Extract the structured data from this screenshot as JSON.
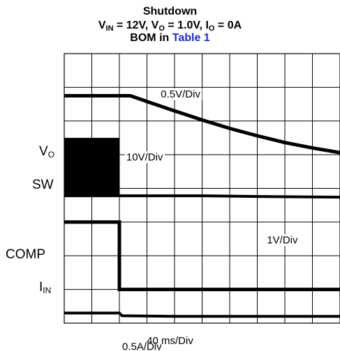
{
  "title": {
    "line1": "Shutdown",
    "line2": {
      "vin": "V",
      "vin_sub": "IN",
      "vin_value": " = 12V, ",
      "vo": "V",
      "vo_sub": "O",
      "vo_value": " = 1.0V, ",
      "io": "I",
      "io_sub": "O",
      "io_value": " = 0A"
    },
    "line3": {
      "text": "BOM in ",
      "link": "Table 1"
    }
  },
  "colors": {
    "trace": "#000000",
    "grid": "#000000",
    "link": "#1f2cd0",
    "background": "#ffffff"
  },
  "channel_labels": {
    "vo": {
      "base": "V",
      "sub": "O"
    },
    "sw": {
      "text": "SW"
    },
    "comp": {
      "text": "COMP"
    },
    "iin": {
      "base": "I",
      "sub": "IN"
    }
  },
  "chart_data": {
    "type": "line",
    "title": "Shutdown",
    "subtitle": "VIN = 12V, VO = 1.0V, IO = 0A",
    "note": "BOM in Table 1",
    "xlabel": "40 ms/Div",
    "x_divisions": 10,
    "y_divisions": 8,
    "grid": true,
    "x_unit": "div",
    "xlim": [
      0,
      10
    ],
    "ylim": [
      0,
      8
    ],
    "series": [
      {
        "name": "VO",
        "scale_label": "0.5V/Div",
        "x": [
          0,
          1.0,
          2.0,
          2.4,
          3.0,
          4.0,
          5.0,
          6.0,
          7.0,
          8.0,
          9.0,
          10.0
        ],
        "y": [
          6.75,
          6.75,
          6.75,
          6.75,
          6.58,
          6.3,
          6.03,
          5.78,
          5.56,
          5.36,
          5.2,
          5.06
        ],
        "stroke": 5
      },
      {
        "name": "SW",
        "scale_label": "10V/Div",
        "x": [
          0,
          2.0,
          2.0,
          3.0,
          5.0,
          7.0,
          10.0
        ],
        "y": [
          3.78,
          3.78,
          3.78,
          3.78,
          3.78,
          3.76,
          3.74
        ],
        "burst": {
          "x_start": 0,
          "x_end": 2.0,
          "y_low": 3.8,
          "y_high": 5.5
        },
        "stroke": 4
      },
      {
        "name": "COMP",
        "scale_label": "1V/Div",
        "x": [
          0,
          2.0,
          2.0,
          4.0,
          6.0,
          8.0,
          10.0
        ],
        "y": [
          3.0,
          3.0,
          1.0,
          1.0,
          1.0,
          1.0,
          1.0
        ],
        "stroke": 5
      },
      {
        "name": "IIN",
        "scale_label": "0.5A/Div",
        "x": [
          0,
          2.0,
          2.1,
          4.0,
          6.0,
          8.0,
          10.0
        ],
        "y": [
          0.3,
          0.3,
          0.22,
          0.2,
          0.2,
          0.2,
          0.2
        ],
        "stroke": 4
      }
    ]
  }
}
